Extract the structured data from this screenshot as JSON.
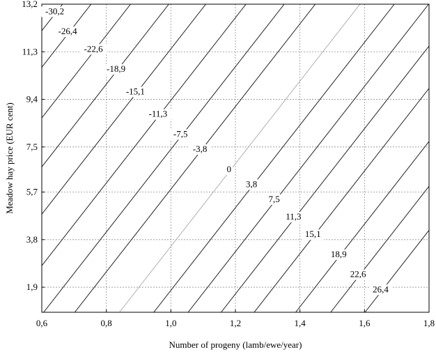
{
  "chart_data": {
    "type": "contour",
    "xlabel": "Number of progeny (lamb/ewe/year)",
    "ylabel": "Meadow hay price (EUR cent)",
    "xlim": [
      0.6,
      1.8
    ],
    "ylim": [
      0.9,
      13.2
    ],
    "x_ticks": [
      "0,6",
      "0,8",
      "1,0",
      "1,2",
      "1,4",
      "1,6",
      "1,8"
    ],
    "y_ticks": [
      "1,9",
      "3,8",
      "5,7",
      "7,5",
      "9,4",
      "11,3",
      "13,2"
    ],
    "grid": true,
    "contour_lines": [
      {
        "level": "-30,2",
        "label_at": [
          0.64,
          12.8
        ]
      },
      {
        "level": "-26,4",
        "label_at": [
          0.68,
          12.0
        ]
      },
      {
        "level": "-22,6",
        "label_at": [
          0.76,
          11.3
        ]
      },
      {
        "level": "-18,9",
        "label_at": [
          0.83,
          10.5
        ]
      },
      {
        "level": "-15,1",
        "label_at": [
          0.89,
          9.6
        ]
      },
      {
        "level": "-11,3",
        "label_at": [
          0.96,
          8.7
        ]
      },
      {
        "level": "-7,5",
        "label_at": [
          1.03,
          7.9
        ]
      },
      {
        "level": "-3,8",
        "label_at": [
          1.09,
          7.3
        ]
      },
      {
        "level": "0",
        "label_at": [
          1.18,
          6.5
        ]
      },
      {
        "level": "3,8",
        "label_at": [
          1.25,
          5.9
        ]
      },
      {
        "level": "7,5",
        "label_at": [
          1.32,
          5.3
        ]
      },
      {
        "level": "11,3",
        "label_at": [
          1.38,
          4.6
        ]
      },
      {
        "level": "15,1",
        "label_at": [
          1.44,
          3.9
        ]
      },
      {
        "level": "18,9",
        "label_at": [
          1.52,
          3.1
        ]
      },
      {
        "level": "22,6",
        "label_at": [
          1.58,
          2.3
        ]
      },
      {
        "level": "26,4",
        "label_at": [
          1.65,
          1.7
        ]
      }
    ],
    "colors": {
      "lines": "#222222",
      "zero_line": "#b0b0b0",
      "grid": "#8f8f8f"
    }
  }
}
